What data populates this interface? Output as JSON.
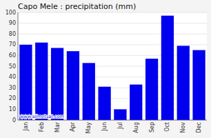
{
  "chart_data": {
    "type": "bar",
    "title": "Capo Mele : precipitation (mm)",
    "categories": [
      "Jan",
      "Feb",
      "Mar",
      "Apr",
      "May",
      "Jun",
      "Jul",
      "Aug",
      "Sep",
      "Oct",
      "Nov",
      "Dec"
    ],
    "values": [
      70,
      72,
      67,
      64,
      53,
      31,
      10,
      33,
      57,
      97,
      69,
      65
    ],
    "color": "#0000ee",
    "ylim": [
      0,
      100
    ],
    "yticks": [
      0,
      10,
      20,
      30,
      40,
      50,
      60,
      70,
      80,
      90,
      100
    ],
    "grid": true,
    "annotations": [
      "www.allmetsat.com"
    ]
  }
}
